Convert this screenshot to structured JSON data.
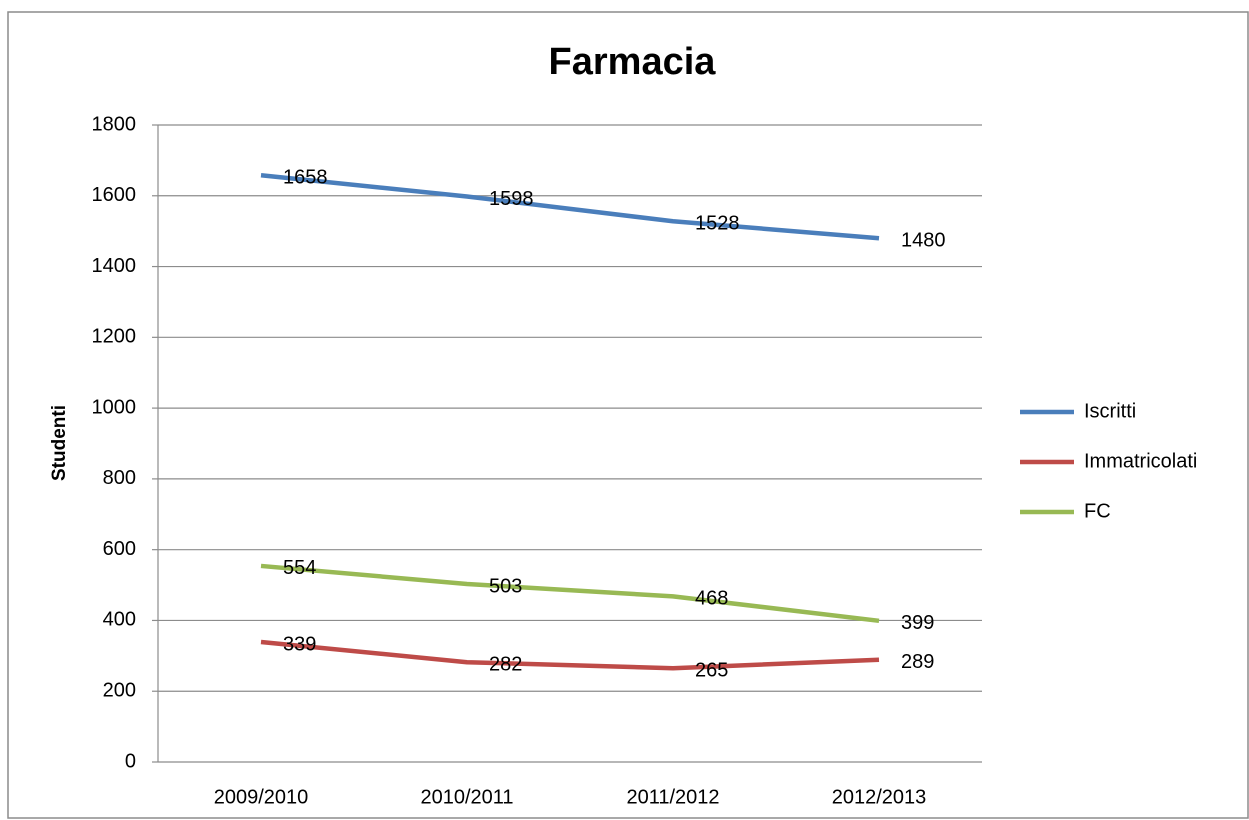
{
  "chart_data": {
    "type": "line",
    "title": "Farmacia",
    "y_label": "Studenti",
    "categories": [
      "2009/2010",
      "2010/2011",
      "2011/2012",
      "2012/2013"
    ],
    "series": [
      {
        "name": "Iscritti",
        "color": "#4a7ebb",
        "values": [
          1658,
          1598,
          1528,
          1480
        ]
      },
      {
        "name": "Immatricolati",
        "color": "#be4b48",
        "values": [
          339,
          282,
          265,
          289
        ]
      },
      {
        "name": "FC",
        "color": "#98b954",
        "values": [
          554,
          503,
          468,
          399
        ]
      }
    ],
    "ylim": [
      0,
      1800
    ],
    "yticks": [
      0,
      200,
      400,
      600,
      800,
      1000,
      1200,
      1400,
      1600,
      1800
    ],
    "grid": true,
    "legend": "right"
  }
}
